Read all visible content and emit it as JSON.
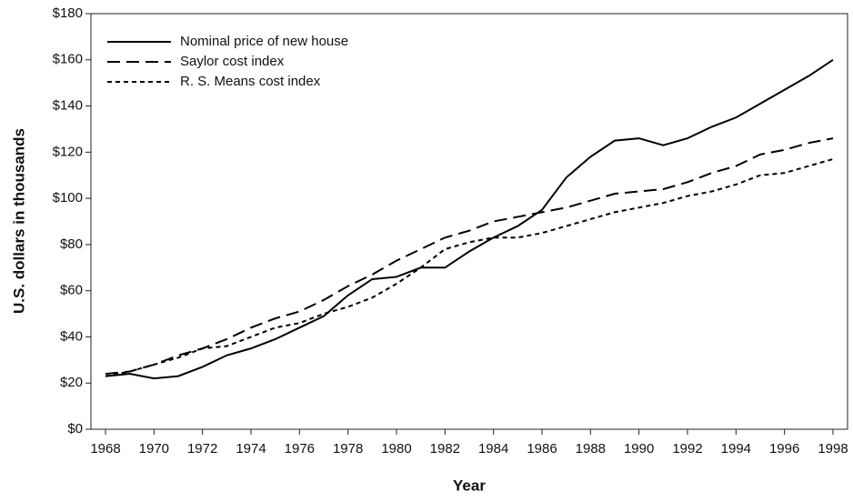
{
  "chart_data": {
    "type": "line",
    "xlabel": "Year",
    "ylabel": "U.S. dollars in thousands",
    "x": [
      1968,
      1969,
      1970,
      1971,
      1972,
      1973,
      1974,
      1975,
      1976,
      1977,
      1978,
      1979,
      1980,
      1981,
      1982,
      1983,
      1984,
      1985,
      1986,
      1987,
      1988,
      1989,
      1990,
      1991,
      1992,
      1993,
      1994,
      1995,
      1996,
      1997,
      1998
    ],
    "series": [
      {
        "name": "Nominal price of new house",
        "color": "#000000",
        "dash": "solid",
        "values": [
          23,
          24,
          22,
          23,
          27,
          32,
          35,
          39,
          44,
          49,
          58,
          65,
          66,
          70,
          70,
          77,
          83,
          88,
          95,
          109,
          118,
          125,
          126,
          123,
          126,
          131,
          135,
          141,
          147,
          153,
          160
        ]
      },
      {
        "name": "Saylor cost index",
        "color": "#000000",
        "dash": "long",
        "values": [
          24,
          25,
          28,
          32,
          35,
          39,
          44,
          48,
          51,
          56,
          62,
          67,
          73,
          78,
          83,
          86,
          90,
          92,
          94,
          96,
          99,
          102,
          103,
          104,
          107,
          111,
          114,
          119,
          121,
          124,
          126
        ]
      },
      {
        "name": "R. S. Means cost index",
        "color": "#000000",
        "dash": "short",
        "values": [
          23,
          25,
          28,
          31,
          35,
          36,
          40,
          44,
          46,
          50,
          53,
          57,
          63,
          70,
          78,
          81,
          83,
          83,
          85,
          88,
          91,
          94,
          96,
          98,
          101,
          103,
          106,
          110,
          111,
          114,
          117
        ]
      }
    ],
    "xlim": [
      1967.4,
      1998.6
    ],
    "xticks": [
      1968,
      1970,
      1972,
      1974,
      1976,
      1978,
      1980,
      1982,
      1984,
      1986,
      1988,
      1990,
      1992,
      1994,
      1996,
      1998
    ],
    "ylim": [
      0,
      180
    ],
    "yticks": [
      {
        "value": 0,
        "label": "$0"
      },
      {
        "value": 20,
        "label": "$20"
      },
      {
        "value": 40,
        "label": "$40"
      },
      {
        "value": 60,
        "label": "$60"
      },
      {
        "value": 80,
        "label": "$80"
      },
      {
        "value": 100,
        "label": "$100"
      },
      {
        "value": 120,
        "label": "$120"
      },
      {
        "value": 140,
        "label": "$140"
      },
      {
        "value": 160,
        "label": "$160"
      },
      {
        "value": 180,
        "label": "$180"
      }
    ],
    "legend": "upper left",
    "grid": false
  }
}
